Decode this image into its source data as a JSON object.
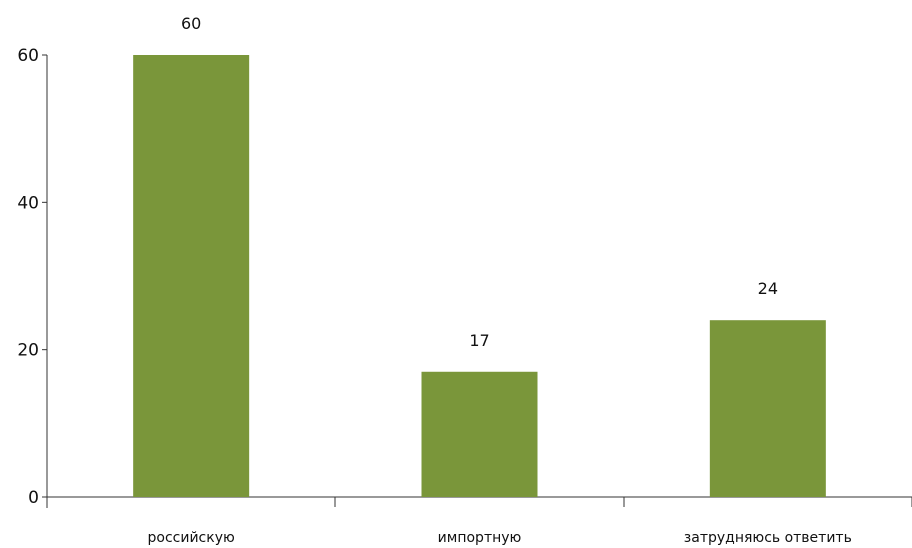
{
  "chart_data": {
    "type": "bar",
    "categories": [
      "российскую",
      "импортную",
      "затрудняюсь ответить"
    ],
    "values": [
      60,
      17,
      24
    ],
    "data_labels": [
      "60",
      "17",
      "24"
    ],
    "title": "",
    "xlabel": "",
    "ylabel": "",
    "ylim": [
      0,
      60
    ],
    "yticks": [
      0,
      20,
      40,
      60
    ],
    "grid": false,
    "legend": "none",
    "bar_color": "#7a963a",
    "axis_color": "#333333"
  }
}
